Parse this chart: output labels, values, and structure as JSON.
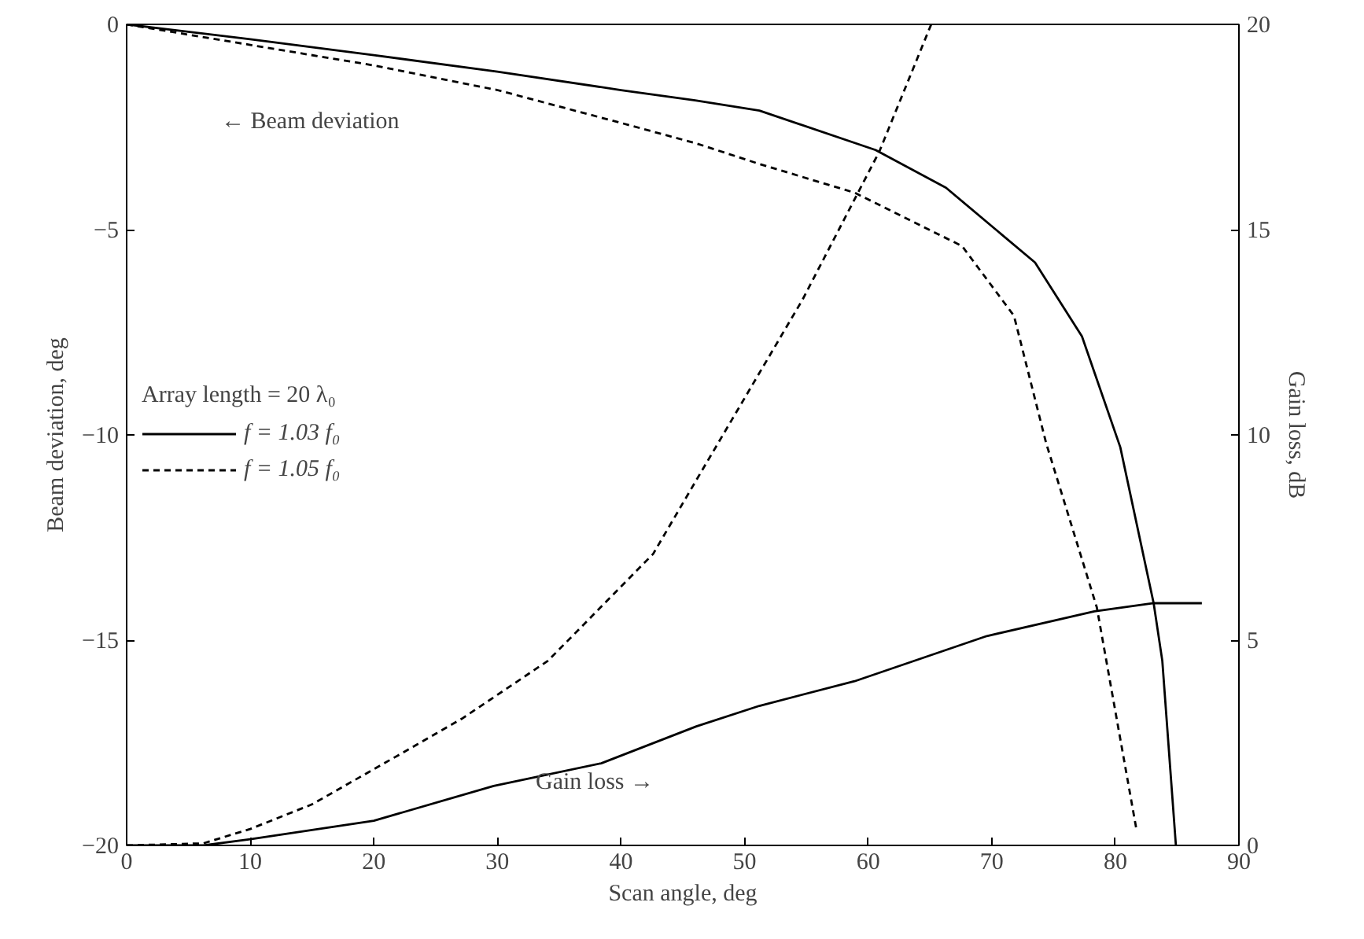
{
  "chart_data": {
    "type": "line",
    "xlabel": "Scan angle, deg",
    "ylabel": "Beam deviation, deg",
    "y2label": "Gain loss, dB",
    "legend_title": "Array length = 20 λ₀",
    "legend": "left",
    "grid": false,
    "marker": "none",
    "xlim": [
      0,
      90
    ],
    "xticks": [
      0,
      10,
      20,
      30,
      40,
      50,
      60,
      70,
      80,
      90
    ],
    "ylim": [
      -20,
      0
    ],
    "yticks": [
      -20,
      -15,
      -10,
      -5,
      0
    ],
    "y2lim": [
      0,
      20
    ],
    "y2ticks": [
      0,
      5,
      10,
      15,
      20
    ],
    "series": [
      {
        "name": "f = 1.03 f₀",
        "color": "#000000",
        "line_style": "solid",
        "x": [
          0,
          10,
          20,
          30,
          40,
          46,
          51.2,
          60.6,
          66.3,
          73.5,
          77.3,
          80.4,
          83.1,
          83.8,
          84.9
        ],
        "values": [
          0,
          -0.36,
          -0.75,
          -1.15,
          -1.6,
          -1.85,
          -2.1,
          -3.06,
          -3.98,
          -5.8,
          -7.6,
          -10.3,
          -14.1,
          -15.5,
          -20
        ]
      },
      {
        "name": "f = 1.05 f₀",
        "color": "#000000",
        "line_style": "dashed",
        "x": [
          0,
          10,
          20,
          30,
          40,
          46.1,
          51.2,
          58.9,
          67.6,
          71.8,
          74.4,
          78.5,
          81.7
        ],
        "values": [
          0,
          -0.5,
          -1.0,
          -1.6,
          -2.4,
          -2.9,
          -3.4,
          -4.1,
          -5.4,
          -7.1,
          -10.2,
          -14.2,
          -19.6
        ]
      },
      {
        "color": "#000000",
        "line_style": "solid",
        "axis": "y2",
        "x": [
          0,
          6.2,
          10,
          20,
          29.7,
          38.4,
          46.1,
          51.2,
          58.9,
          69.6,
          78.3,
          83,
          87
        ],
        "values": [
          0,
          0,
          0.15,
          0.6,
          1.45,
          2.0,
          2.9,
          3.4,
          4.0,
          5.1,
          5.7,
          5.9,
          5.9
        ]
      },
      {
        "color": "#000000",
        "line_style": "dashed",
        "axis": "y2",
        "x": [
          0,
          6.2,
          10,
          15,
          22,
          27.2,
          34.1,
          42.6,
          46.1,
          54.7,
          60.9,
          65.1
        ],
        "values": [
          0,
          0.05,
          0.4,
          1.0,
          2.2,
          3.1,
          4.5,
          7.1,
          8.9,
          13.3,
          16.9,
          20
        ]
      }
    ],
    "annotations": [
      "← Beam deviation",
      "Gain loss →"
    ]
  }
}
